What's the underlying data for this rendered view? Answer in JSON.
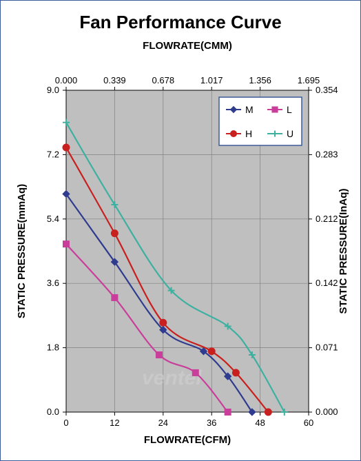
{
  "chart": {
    "type": "line",
    "title": "Fan Performance Curve",
    "title_fontsize": 26,
    "top_axis_label": "FLOWRATE(CMM)",
    "bottom_axis_label": "FLOWRATE(CFM)",
    "left_axis_label": "STATIC PRESSURE(mmAq)",
    "right_axis_label": "STATIC PRESSURE(InAq)",
    "axis_label_fontsize": 15,
    "tick_fontsize": 13,
    "background_color": "#ffffff",
    "plot_background": "#bfbfbf",
    "border_color": "#3a5a9a",
    "grid_color": "#808080",
    "axis_color": "#000000",
    "x_bottom": {
      "min": 0,
      "max": 60,
      "ticks": [
        0,
        12,
        24,
        36,
        48,
        60
      ]
    },
    "x_top": {
      "min": 0,
      "max": 1.695,
      "ticks": [
        "0.000",
        "0.339",
        "0.678",
        "1.017",
        "1.356",
        "1.695"
      ]
    },
    "y_left": {
      "min": 0,
      "max": 9.0,
      "ticks": [
        "0.0",
        "1.8",
        "3.6",
        "5.4",
        "7.2",
        "9.0"
      ]
    },
    "y_right": {
      "min": 0,
      "max": 0.354,
      "ticks": [
        "0.000",
        "0.071",
        "0.142",
        "0.212",
        "0.283",
        "0.354"
      ]
    },
    "legend": {
      "items": [
        {
          "label": "M",
          "color": "#2e3b8f",
          "marker": "diamond"
        },
        {
          "label": "L",
          "color": "#c83e9a",
          "marker": "square"
        },
        {
          "label": "H",
          "color": "#c8201e",
          "marker": "circle"
        },
        {
          "label": "U",
          "color": "#3eb0a0",
          "marker": "plus"
        }
      ],
      "border_color": "#3a5a9a",
      "background": "#ffffff"
    },
    "series": {
      "M": {
        "color": "#2e3b8f",
        "marker": "diamond",
        "points": [
          [
            0,
            6.1
          ],
          [
            12,
            4.2
          ],
          [
            24,
            2.3
          ],
          [
            34,
            1.7
          ],
          [
            40,
            1.0
          ],
          [
            46,
            0.0
          ]
        ]
      },
      "L": {
        "color": "#c83e9a",
        "marker": "square",
        "points": [
          [
            0,
            4.7
          ],
          [
            12,
            3.2
          ],
          [
            23,
            1.6
          ],
          [
            32,
            1.1
          ],
          [
            40,
            0.0
          ]
        ]
      },
      "H": {
        "color": "#c8201e",
        "marker": "circle",
        "points": [
          [
            0,
            7.4
          ],
          [
            12,
            5.0
          ],
          [
            24,
            2.5
          ],
          [
            36,
            1.7
          ],
          [
            42,
            1.1
          ],
          [
            50,
            0.0
          ]
        ]
      },
      "U": {
        "color": "#3eb0a0",
        "marker": "plus",
        "points": [
          [
            0,
            8.1
          ],
          [
            12,
            5.8
          ],
          [
            26,
            3.4
          ],
          [
            40,
            2.4
          ],
          [
            46,
            1.6
          ],
          [
            54,
            0.0
          ]
        ]
      }
    },
    "line_width": 2.2,
    "marker_size": 5,
    "watermark_text": "ventel",
    "watermark_color": "#d0d0d0"
  }
}
